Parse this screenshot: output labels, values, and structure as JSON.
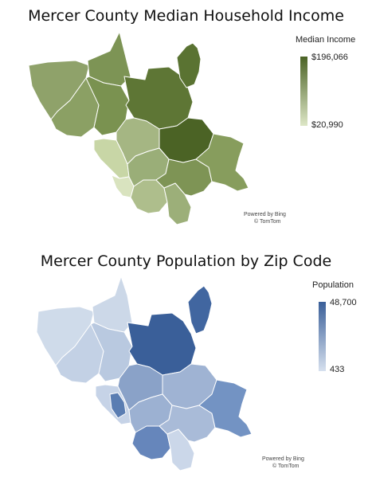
{
  "maps": [
    {
      "title": "Mercer County Median Household Income",
      "legend": {
        "title": "Median Income",
        "max_label": "$196,066",
        "min_label": "$20,990",
        "color_high": "#4b6325",
        "color_low": "#dde6c6"
      },
      "credit": {
        "line1": "Powered by Bing",
        "line2": "© TomTom"
      }
    },
    {
      "title": "Mercer County Population by Zip Code",
      "legend": {
        "title": "Population",
        "max_label": "48,700",
        "min_label": "433",
        "color_high": "#3a5f99",
        "color_low": "#d6e0ee"
      },
      "credit": {
        "line1": "Powered by Bing",
        "line2": "© TomTom"
      }
    }
  ]
}
